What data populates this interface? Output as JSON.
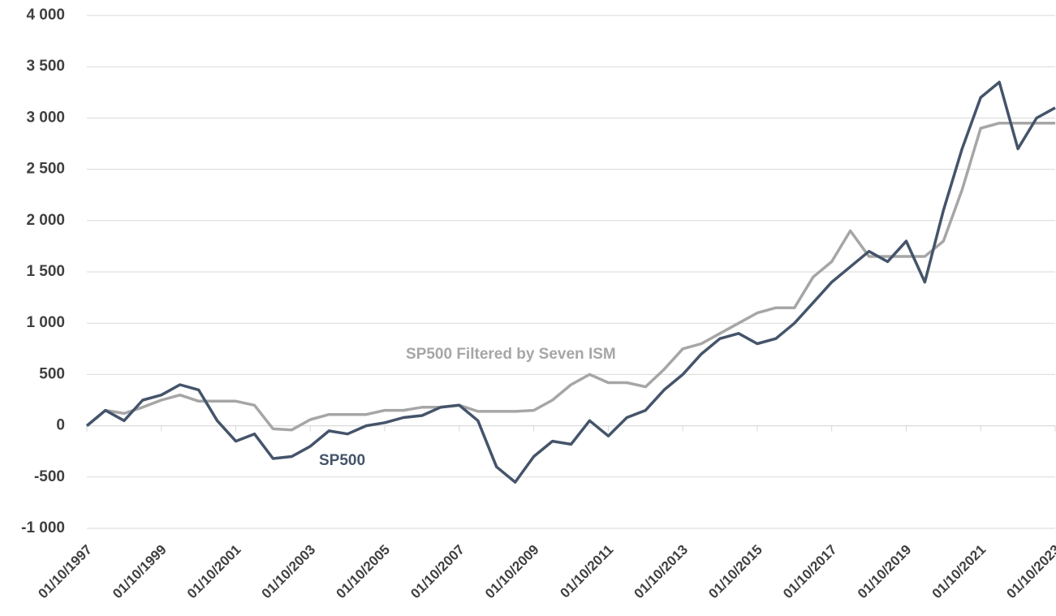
{
  "chart_data": {
    "type": "line",
    "x": [
      "01/10/1997",
      "01/04/1998",
      "01/10/1998",
      "01/04/1999",
      "01/10/1999",
      "01/04/2000",
      "01/10/2000",
      "01/04/2001",
      "01/10/2001",
      "01/04/2002",
      "01/10/2002",
      "01/04/2003",
      "01/10/2003",
      "01/04/2004",
      "01/10/2004",
      "01/04/2005",
      "01/10/2005",
      "01/04/2006",
      "01/10/2006",
      "01/04/2007",
      "01/10/2007",
      "01/04/2008",
      "01/10/2008",
      "01/04/2009",
      "01/10/2009",
      "01/04/2010",
      "01/10/2010",
      "01/04/2011",
      "01/10/2011",
      "01/04/2012",
      "01/10/2012",
      "01/04/2013",
      "01/10/2013",
      "01/04/2014",
      "01/10/2014",
      "01/04/2015",
      "01/10/2015",
      "01/04/2016",
      "01/10/2016",
      "01/04/2017",
      "01/10/2017",
      "01/04/2018",
      "01/10/2018",
      "01/04/2019",
      "01/10/2019",
      "01/04/2020",
      "01/10/2020",
      "01/04/2021",
      "01/10/2021",
      "01/04/2022",
      "01/10/2022",
      "01/04/2023",
      "01/10/2023"
    ],
    "series": [
      {
        "name": "SP500 Filtered by Seven ISM",
        "color": "#a6a6a6",
        "values": [
          0,
          150,
          120,
          180,
          250,
          300,
          240,
          240,
          240,
          200,
          -30,
          -40,
          60,
          110,
          110,
          110,
          150,
          150,
          180,
          180,
          200,
          140,
          140,
          140,
          150,
          250,
          400,
          500,
          420,
          420,
          380,
          550,
          750,
          800,
          900,
          1000,
          1100,
          1150,
          1150,
          1450,
          1600,
          1900,
          1650,
          1650,
          1650,
          1650,
          1800,
          2300,
          2900,
          2950,
          2950,
          2950,
          2950
        ]
      },
      {
        "name": "SP500",
        "color": "#44546a",
        "values": [
          0,
          150,
          50,
          250,
          300,
          400,
          350,
          50,
          -150,
          -80,
          -320,
          -300,
          -200,
          -50,
          -80,
          0,
          30,
          80,
          100,
          180,
          200,
          50,
          -400,
          -550,
          -300,
          -150,
          -180,
          50,
          -100,
          80,
          150,
          350,
          500,
          700,
          850,
          900,
          800,
          850,
          1000,
          1200,
          1400,
          1550,
          1700,
          1600,
          1800,
          1400,
          2100,
          2700,
          3200,
          3350,
          2700,
          3000,
          3100
        ]
      }
    ],
    "xticks": [
      "01/10/1997",
      "01/10/1999",
      "01/10/2001",
      "01/10/2003",
      "01/10/2005",
      "01/10/2007",
      "01/10/2009",
      "01/10/2011",
      "01/10/2013",
      "01/10/2015",
      "01/10/2017",
      "01/10/2019",
      "01/10/2021",
      "01/10/2023"
    ],
    "xlim": [
      "01/10/1997",
      "01/10/2023"
    ],
    "ylim": [
      -1000,
      4000
    ],
    "yticks": [
      {
        "value": -1000,
        "label": "-1 000"
      },
      -500,
      0,
      500,
      {
        "value": 1000,
        "label": "1 000"
      },
      {
        "value": 1500,
        "label": "1 500"
      },
      {
        "value": 2000,
        "label": "2 000"
      },
      {
        "value": 2500,
        "label": "2 500"
      },
      {
        "value": 3000,
        "label": "3 000"
      },
      {
        "value": 3500,
        "label": "3 500"
      },
      {
        "value": 4000,
        "label": "4 000"
      }
    ],
    "grid": true
  }
}
